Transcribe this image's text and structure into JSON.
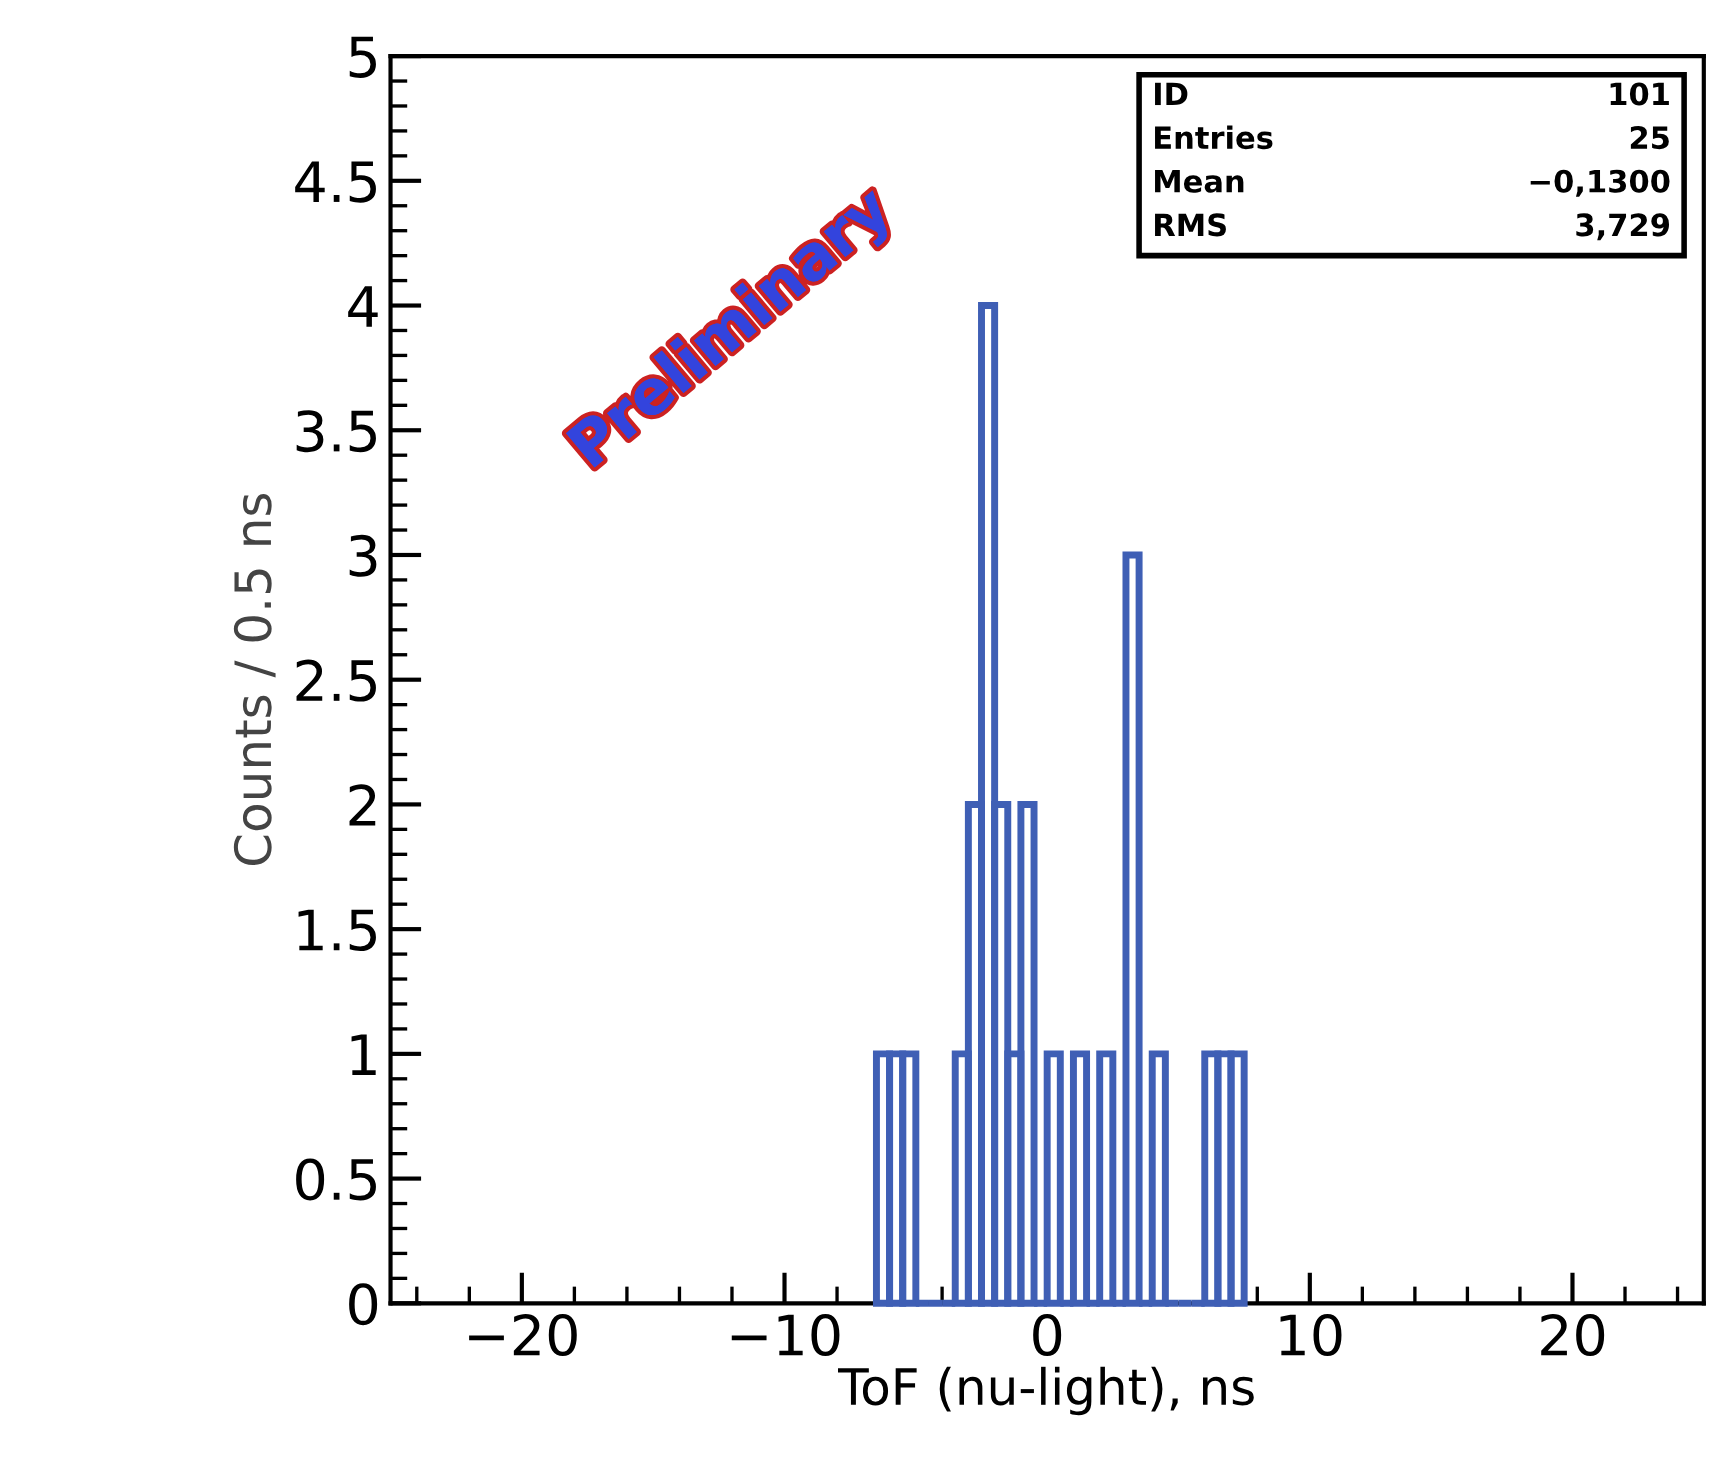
{
  "chart_data": {
    "type": "histogram",
    "xlabel": "ToF (nu-light), ns",
    "ylabel": "Counts / 0.5 ns",
    "bins": [
      -6.5,
      -6,
      -5.5,
      -5,
      -4.5,
      -4,
      -3.5,
      -3,
      -2.5,
      -2,
      -1.5,
      -1,
      -0.5,
      0,
      0.5,
      1,
      1.5,
      2,
      2.5,
      3,
      3.5,
      4,
      4.5,
      5,
      5.5,
      6,
      6.5,
      7,
      7.5
    ],
    "values": [
      1,
      1,
      1,
      0,
      0,
      0,
      1,
      2,
      4,
      2,
      1,
      2,
      0,
      1,
      0,
      1,
      0,
      1,
      0,
      3,
      0,
      1,
      0,
      0,
      0,
      1,
      1,
      1
    ],
    "color": "#3f5fb5",
    "xlim": [
      -25,
      25
    ],
    "xticks": [
      {
        "value": -20,
        "label": "−20"
      },
      {
        "value": -10,
        "label": "−10"
      },
      0,
      10,
      20
    ],
    "ylim": [
      0,
      5
    ],
    "yticks": [
      0,
      0.5,
      1,
      1.5,
      2,
      2.5,
      3,
      3.5,
      4,
      4.5,
      5
    ],
    "grid": false,
    "legend": false,
    "annotations": [
      "Preliminary",
      "ID",
      "101",
      "Entries",
      "25",
      "Mean",
      "−0,1300",
      "RMS",
      "3,729"
    ]
  }
}
